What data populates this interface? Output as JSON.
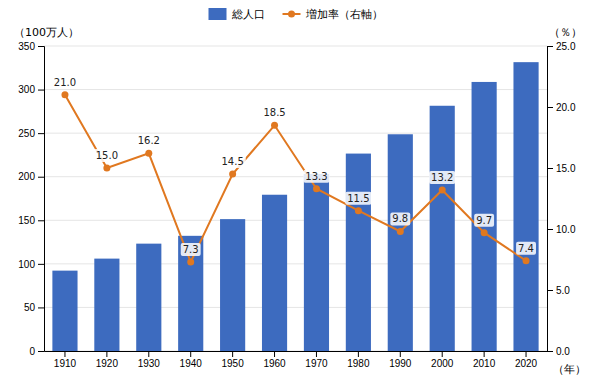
{
  "chart_data": {
    "type": "bar",
    "categories": [
      "1910",
      "1920",
      "1930",
      "1940",
      "1950",
      "1960",
      "1970",
      "1980",
      "1990",
      "2000",
      "2010",
      "2020"
    ],
    "x_label": "（年）",
    "y_label": "（100万人）",
    "y2_label": "（％）",
    "ylim": [
      0,
      350
    ],
    "yticks": [
      0,
      50,
      100,
      150,
      200,
      250,
      300,
      350
    ],
    "y2lim": [
      0.0,
      25.0
    ],
    "y2ticks": [
      {
        "value": 0.0,
        "label": "0.0"
      },
      {
        "value": 5.0,
        "label": "5.0"
      },
      {
        "value": 10.0,
        "label": "10.0"
      },
      {
        "value": 15.0,
        "label": "15.0"
      },
      {
        "value": 20.0,
        "label": "20.0"
      },
      {
        "value": 25.0,
        "label": "25.0"
      }
    ],
    "grid": true,
    "legend": "top",
    "series": [
      {
        "name": "総人口",
        "type": "bar",
        "color": "#3d6bbf",
        "values": [
          92.23,
          106.02,
          123.2,
          132.17,
          151.33,
          179.32,
          203.21,
          226.55,
          248.71,
          281.42,
          308.75,
          331.45
        ]
      },
      {
        "name": "増加率（右軸）",
        "type": "line",
        "axis": "y2",
        "color": "#e07820",
        "marker": "circle",
        "data_labels": true,
        "values": [
          21.0,
          15.0,
          16.2,
          7.3,
          14.5,
          18.5,
          13.3,
          11.5,
          9.8,
          13.2,
          9.7,
          7.4
        ],
        "value_labels": [
          "21.0",
          "15.0",
          "16.2",
          "7.3",
          "14.5",
          "18.5",
          "13.3",
          "11.5",
          "9.8",
          "13.2",
          "9.7",
          "7.4"
        ]
      }
    ]
  }
}
